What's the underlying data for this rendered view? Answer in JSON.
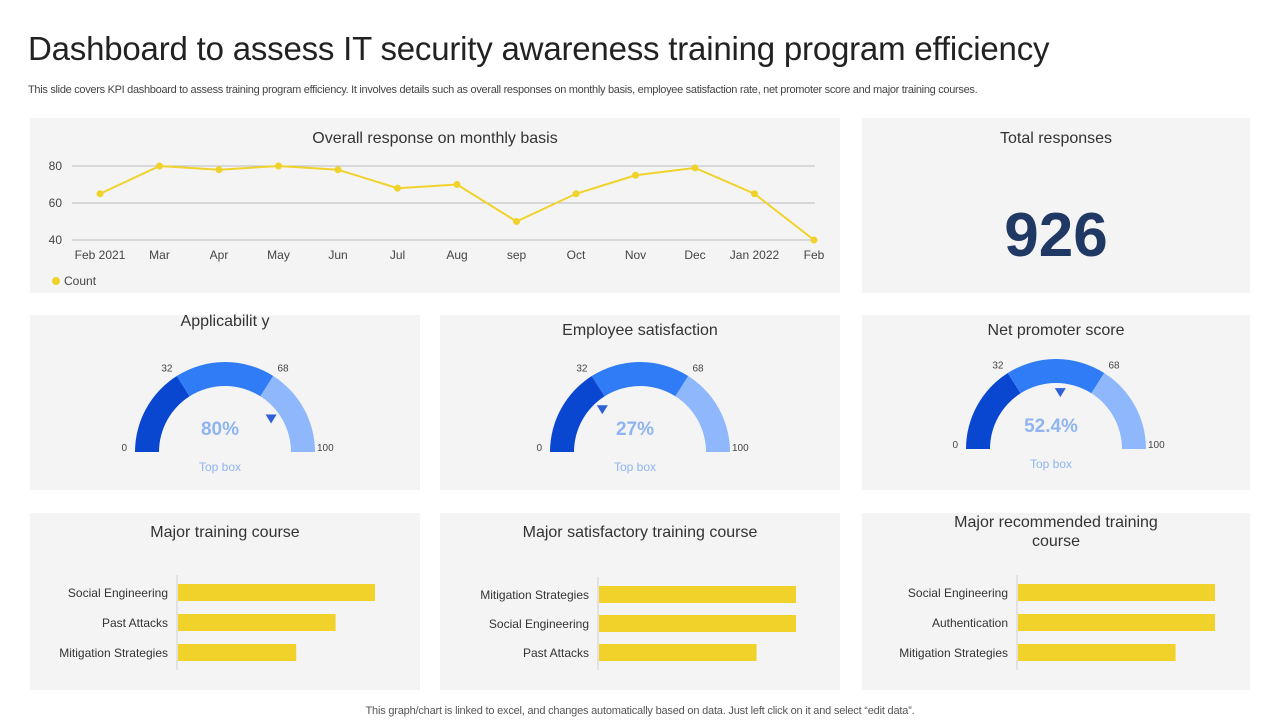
{
  "header": {
    "title": "Dashboard to assess IT security awareness training program efficiency",
    "subtitle": "This slide covers KPI dashboard to assess training program efficiency. It involves details such as overall responses on monthly basis, employee satisfaction rate, net promoter score and major training courses."
  },
  "footer": {
    "note": "This graph/chart is linked to excel,  and changes automatically based on data. Just left click on it and select “edit data”."
  },
  "total_responses": {
    "title": "Total responses",
    "value": "926"
  },
  "colors": {
    "yellow": "#f0d22b",
    "gauge_dark": "#0a47d1",
    "gauge_mid": "#2f7cf6",
    "gauge_light": "#8fb7fb",
    "value_text": "#8fb4f0",
    "number": "#1f3864"
  },
  "chart_data": [
    {
      "type": "line",
      "title": "Overall response on monthly basis",
      "categories": [
        "Feb  2021",
        "Mar",
        "Apr",
        "May",
        "Jun",
        "Jul",
        "Aug",
        "sep",
        "Oct",
        "Nov",
        "Dec",
        "Jan 2022",
        "Feb"
      ],
      "series": [
        {
          "name": "Count",
          "values": [
            65,
            80,
            78,
            80,
            78,
            68,
            70,
            50,
            65,
            75,
            79,
            65,
            40
          ]
        }
      ],
      "ylim": [
        40,
        80
      ],
      "yticks": [
        80,
        60,
        40
      ],
      "legend": "bottom-left",
      "grid": true
    },
    {
      "type": "gauge",
      "title": "Applicabilit y",
      "value_label": "80%",
      "value": 80,
      "caption": "Top box",
      "ticks": [
        "0",
        "32",
        "68",
        "100"
      ],
      "bands": [
        32,
        68,
        100
      ]
    },
    {
      "type": "gauge",
      "title": "Employee satisfaction",
      "value_label": "27%",
      "value": 27,
      "caption": "Top box",
      "ticks": [
        "0",
        "32",
        "68",
        "100"
      ],
      "bands": [
        32,
        68,
        100
      ]
    },
    {
      "type": "gauge",
      "title": "Net promoter score",
      "value_label": "52.4%",
      "value": 52.4,
      "caption": "Top box",
      "ticks": [
        "0",
        "32",
        "68",
        "100"
      ],
      "bands": [
        32,
        68,
        100
      ]
    },
    {
      "type": "bar",
      "title": "Major training course",
      "categories": [
        "Social Engineering",
        "Past Attacks",
        "Mitigation Strategies"
      ],
      "values": [
        100,
        80,
        60
      ],
      "xlim": [
        0,
        100
      ]
    },
    {
      "type": "bar",
      "title": "Major satisfactory training course",
      "categories": [
        "Mitigation Strategies",
        "Social Engineering",
        "Past Attacks"
      ],
      "values": [
        100,
        100,
        80
      ],
      "xlim": [
        0,
        100
      ]
    },
    {
      "type": "bar",
      "title": "Major recommended training course",
      "categories": [
        "Social Engineering",
        "Authentication",
        "Mitigation Strategies"
      ],
      "values": [
        100,
        100,
        80
      ],
      "xlim": [
        0,
        100
      ]
    }
  ]
}
